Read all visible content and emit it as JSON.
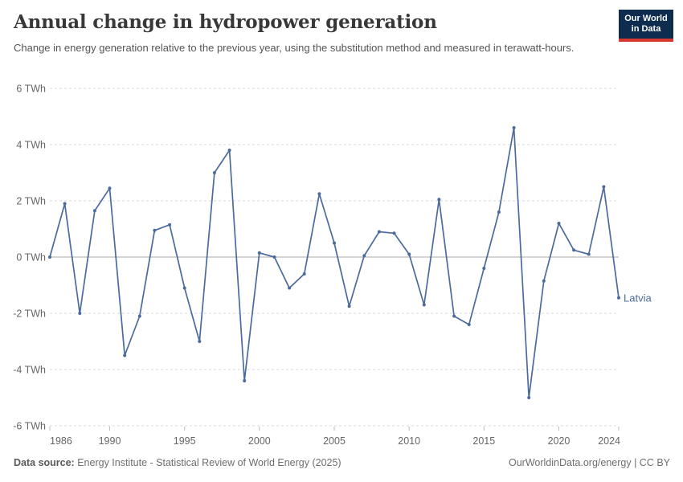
{
  "header": {
    "title": "Annual change in hydropower generation",
    "subtitle": "Change in energy generation relative to the previous year, using the substitution method and measured in terawatt-hours.",
    "logo": {
      "line1": "Our World",
      "line2": "in Data"
    }
  },
  "chart_data": {
    "type": "line",
    "title": "Annual change in hydropower generation",
    "unit": "TWh",
    "entity_label": "Latvia",
    "x": [
      1986,
      1987,
      1988,
      1989,
      1990,
      1991,
      1992,
      1993,
      1994,
      1995,
      1996,
      1997,
      1998,
      1999,
      2000,
      2001,
      2002,
      2003,
      2004,
      2005,
      2006,
      2007,
      2008,
      2009,
      2010,
      2011,
      2012,
      2013,
      2014,
      2015,
      2016,
      2017,
      2018,
      2019,
      2020,
      2021,
      2022,
      2023,
      2024
    ],
    "series": [
      {
        "name": "Latvia",
        "values": [
          0,
          1.9,
          -2,
          1.65,
          2.45,
          -3.5,
          -2.1,
          0.95,
          1.15,
          -1.1,
          -3,
          3,
          3.8,
          -4.4,
          0.15,
          0,
          -1.1,
          -0.6,
          2.25,
          0.5,
          -1.75,
          0.05,
          0.9,
          0.85,
          0.1,
          -1.7,
          2.05,
          -2.1,
          -2.4,
          -0.4,
          1.6,
          4.6,
          -5,
          -0.85,
          1.2,
          0.25,
          0.1,
          2.5,
          -1.45
        ]
      }
    ],
    "xlim": [
      1986,
      2024
    ],
    "ylim": [
      -6,
      6
    ],
    "grid": true,
    "legend_position": "end-of-line",
    "y_ticks": [
      {
        "value": 6,
        "label": "6 TWh"
      },
      {
        "value": 4,
        "label": "4 TWh"
      },
      {
        "value": 2,
        "label": "2 TWh"
      },
      {
        "value": 0,
        "label": "0 TWh"
      },
      {
        "value": -2,
        "label": "-2 TWh"
      },
      {
        "value": -4,
        "label": "-4 TWh"
      },
      {
        "value": -6,
        "label": "-6 TWh"
      }
    ],
    "x_ticks": [
      {
        "value": 1986,
        "label": "1986"
      },
      {
        "value": 1990,
        "label": "1990"
      },
      {
        "value": 1995,
        "label": "1995"
      },
      {
        "value": 2000,
        "label": "2000"
      },
      {
        "value": 2005,
        "label": "2005"
      },
      {
        "value": 2010,
        "label": "2010"
      },
      {
        "value": 2015,
        "label": "2015"
      },
      {
        "value": 2020,
        "label": "2020"
      },
      {
        "value": 2024,
        "label": "2024"
      }
    ]
  },
  "footer": {
    "source_label": "Data source:",
    "source_text": " Energy Institute - Statistical Review of World Energy (2025)",
    "attribution": "OurWorldinData.org/energy | CC BY"
  },
  "colors": {
    "line": "#4c6a9c",
    "point": "#4c6a9c",
    "grid": "#d9d9d9",
    "zero_line": "#a8a8a8",
    "tick_mark": "#bbbbbb",
    "axis_text": "#666666",
    "logo_bg": "#0d2c4e",
    "logo_stripe": "#d7382d"
  }
}
